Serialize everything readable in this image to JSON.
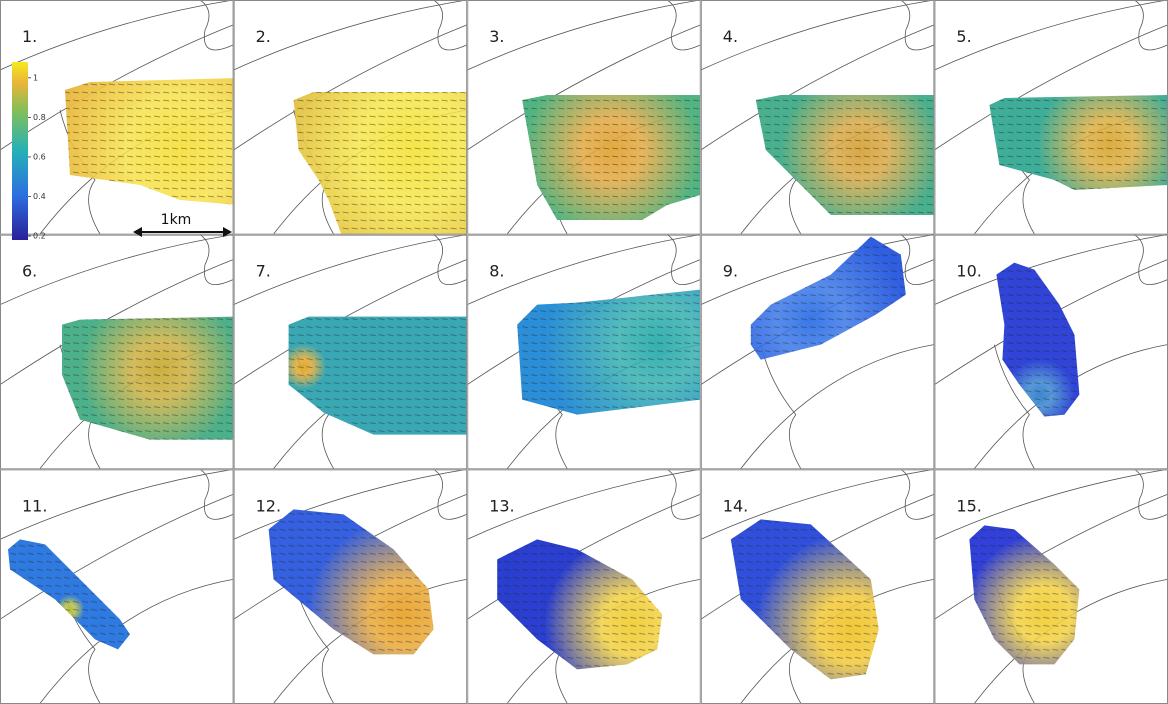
{
  "panels": [
    {
      "label": "1."
    },
    {
      "label": "2."
    },
    {
      "label": "3."
    },
    {
      "label": "4."
    },
    {
      "label": "5."
    },
    {
      "label": "6."
    },
    {
      "label": "7."
    },
    {
      "label": "8."
    },
    {
      "label": "9."
    },
    {
      "label": "10."
    },
    {
      "label": "11."
    },
    {
      "label": "12."
    },
    {
      "label": "13."
    },
    {
      "label": "14."
    },
    {
      "label": "15."
    }
  ],
  "colorbar": {
    "clim": [
      0.18,
      1.08
    ],
    "ticks": [
      1,
      0.8,
      0.6,
      0.4,
      0.2
    ]
  },
  "scale_bar": "1km"
}
